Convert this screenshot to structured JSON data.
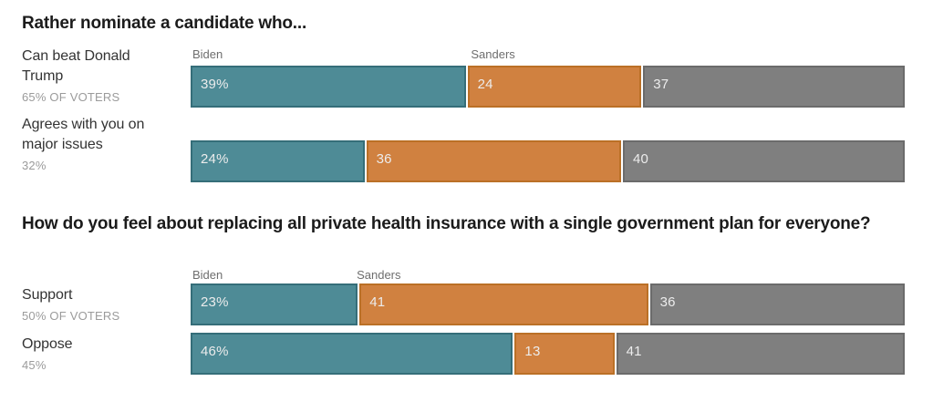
{
  "colors": {
    "Biden": {
      "fill": "#4e8b96",
      "border": "#356e79"
    },
    "Sanders": {
      "fill": "#d08140",
      "border": "#bb7026"
    },
    "unlabeled": {
      "fill": "#7f7f7f",
      "border": "#6b6b6b"
    },
    "value_text": "#ececec",
    "series_label_text": "#6e6e6e",
    "row_label_text": "#333333",
    "row_sublabel_text": "#9b9b9b",
    "title_text": "#1b1b1b",
    "background": "#ffffff"
  },
  "chart_data": [
    {
      "type": "bar",
      "orientation": "horizontal",
      "stacked": true,
      "total": 100,
      "xlim": [
        0,
        100
      ],
      "grid": false,
      "axes": "none",
      "value_labels": "inside-left",
      "series_label_position": "above-first-row",
      "title": "Rather nominate a candidate who...",
      "series_labels_shown": [
        "Biden",
        "Sanders"
      ],
      "rows": [
        {
          "category": "Can beat Donald Trump",
          "category_note": "65% OF VOTERS",
          "segments": [
            {
              "series": "Biden",
              "value": 39,
              "label": "39%"
            },
            {
              "series": "Sanders",
              "value": 24,
              "label": "24"
            },
            {
              "series": "unlabeled",
              "value": 37,
              "label": "37"
            }
          ]
        },
        {
          "category": "Agrees with you on major issues",
          "category_note": "32%",
          "segments": [
            {
              "series": "Biden",
              "value": 24,
              "label": "24%"
            },
            {
              "series": "Sanders",
              "value": 36,
              "label": "36"
            },
            {
              "series": "unlabeled",
              "value": 40,
              "label": "40"
            }
          ]
        }
      ]
    },
    {
      "type": "bar",
      "orientation": "horizontal",
      "stacked": true,
      "total": 100,
      "xlim": [
        0,
        100
      ],
      "grid": false,
      "axes": "none",
      "value_labels": "inside-left",
      "series_label_position": "above-first-row",
      "title": "How do you feel about replacing all private health insurance with a single government plan for everyone?",
      "series_labels_shown": [
        "Biden",
        "Sanders"
      ],
      "rows": [
        {
          "category": "Support",
          "category_note": "50% OF VOTERS",
          "segments": [
            {
              "series": "Biden",
              "value": 23,
              "label": "23%"
            },
            {
              "series": "Sanders",
              "value": 41,
              "label": "41"
            },
            {
              "series": "unlabeled",
              "value": 36,
              "label": "36"
            }
          ]
        },
        {
          "category": "Oppose",
          "category_note": "45%",
          "segments": [
            {
              "series": "Biden",
              "value": 46,
              "label": "46%"
            },
            {
              "series": "Sanders",
              "value": 13,
              "label": "13"
            },
            {
              "series": "unlabeled",
              "value": 41,
              "label": "41"
            }
          ]
        }
      ]
    }
  ]
}
